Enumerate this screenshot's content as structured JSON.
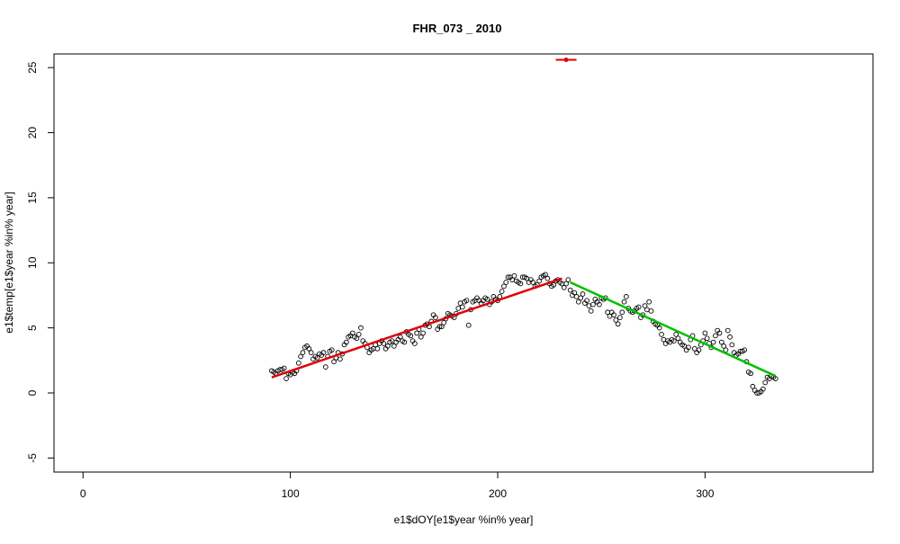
{
  "chart_data": {
    "type": "scatter",
    "title": "FHR_073 _ 2010",
    "x_label": "e1$dOY[e1$year %in% year]",
    "y_label": "e1$temp[e1$year %in% year]",
    "xlim": [
      -14,
      381
    ],
    "ylim": [
      -6.08,
      26.05
    ],
    "xticks": [
      0,
      100,
      200,
      300
    ],
    "yticks": [
      -5,
      0,
      5,
      10,
      15,
      20,
      25
    ],
    "points": {
      "color": "#000000",
      "x": [
        91,
        92,
        93,
        94,
        95,
        96,
        97,
        98,
        99,
        100,
        101,
        102,
        103,
        104,
        105,
        106,
        107,
        108,
        109,
        110,
        111,
        112,
        113,
        114,
        115,
        116,
        117,
        118,
        119,
        120,
        121,
        122,
        123,
        124,
        125,
        126,
        127,
        128,
        129,
        130,
        131,
        132,
        133,
        134,
        135,
        136,
        137,
        138,
        139,
        140,
        141,
        142,
        143,
        144,
        145,
        146,
        147,
        148,
        149,
        150,
        151,
        152,
        153,
        154,
        155,
        156,
        157,
        158,
        159,
        160,
        161,
        162,
        163,
        164,
        165,
        166,
        167,
        168,
        169,
        170,
        171,
        172,
        173,
        174,
        175,
        176,
        177,
        178,
        179,
        180,
        181,
        182,
        183,
        184,
        185,
        186,
        187,
        188,
        189,
        190,
        191,
        192,
        193,
        194,
        195,
        196,
        197,
        198,
        199,
        200,
        201,
        202,
        203,
        204,
        205,
        206,
        207,
        208,
        209,
        210,
        211,
        212,
        213,
        214,
        215,
        216,
        217,
        218,
        219,
        220,
        221,
        222,
        223,
        224,
        225,
        226,
        227,
        228,
        229,
        230,
        231,
        232,
        233,
        234,
        235,
        236,
        237,
        238,
        239,
        240,
        241,
        242,
        243,
        244,
        245,
        246,
        247,
        248,
        249,
        250,
        251,
        252,
        253,
        254,
        255,
        256,
        257,
        258,
        259,
        260,
        261,
        262,
        263,
        264,
        265,
        266,
        267,
        268,
        269,
        270,
        271,
        272,
        273,
        274,
        275,
        276,
        277,
        278,
        279,
        280,
        281,
        282,
        283,
        284,
        285,
        286,
        287,
        288,
        289,
        290,
        291,
        292,
        293,
        294,
        295,
        296,
        297,
        298,
        299,
        300,
        301,
        302,
        303,
        304,
        305,
        306,
        307,
        308,
        309,
        310,
        311,
        312,
        313,
        314,
        315,
        316,
        317,
        318,
        319,
        320,
        321,
        322,
        323,
        324,
        325,
        326,
        327,
        328,
        329,
        330,
        331,
        332,
        333,
        334
      ],
      "y": [
        1.7,
        1.6,
        1.5,
        1.7,
        1.8,
        1.8,
        1.9,
        1.1,
        1.5,
        1.4,
        1.6,
        1.5,
        1.7,
        2.3,
        2.8,
        3.1,
        3.5,
        3.6,
        3.4,
        3.1,
        2.6,
        2.8,
        2.7,
        3.0,
        2.9,
        3.1,
        2.0,
        2.8,
        3.2,
        3.3,
        2.4,
        2.7,
        3.1,
        2.6,
        3.0,
        3.7,
        3.9,
        4.3,
        4.4,
        4.6,
        4.3,
        4.2,
        4.5,
        5.0,
        4.0,
        3.8,
        3.5,
        3.1,
        3.3,
        3.4,
        3.7,
        3.4,
        3.8,
        4.0,
        3.8,
        3.4,
        3.6,
        3.9,
        4.0,
        3.6,
        3.9,
        4.1,
        4.3,
        4.0,
        3.9,
        4.7,
        4.5,
        4.4,
        4.0,
        3.8,
        4.6,
        4.9,
        4.3,
        4.6,
        5.2,
        5.3,
        5.1,
        5.5,
        6.0,
        5.8,
        4.9,
        5.1,
        5.1,
        5.4,
        5.7,
        6.1,
        6.0,
        5.9,
        5.8,
        6.1,
        6.5,
        6.9,
        6.6,
        7.0,
        7.1,
        5.2,
        6.4,
        7.0,
        7.1,
        7.3,
        7.1,
        6.9,
        7.1,
        7.3,
        7.2,
        6.8,
        7.0,
        7.4,
        7.2,
        7.1,
        7.4,
        7.8,
        8.2,
        8.5,
        8.9,
        8.9,
        8.7,
        9.0,
        8.6,
        8.5,
        8.4,
        8.9,
        8.9,
        8.8,
        8.5,
        8.7,
        8.5,
        8.2,
        8.3,
        8.6,
        8.9,
        9.0,
        9.1,
        8.8,
        8.4,
        8.2,
        8.3,
        8.6,
        8.7,
        8.5,
        8.4,
        8.1,
        8.4,
        8.7,
        7.9,
        7.5,
        7.7,
        7.4,
        7.0,
        7.3,
        7.6,
        6.9,
        7.1,
        6.7,
        6.3,
        6.8,
        7.2,
        7.0,
        6.8,
        7.3,
        7.2,
        7.3,
        6.2,
        5.9,
        6.2,
        6.0,
        5.6,
        5.3,
        5.8,
        6.2,
        7.0,
        7.4,
        6.5,
        6.3,
        6.2,
        6.3,
        6.5,
        6.6,
        5.8,
        6.0,
        6.7,
        6.4,
        7.0,
        6.3,
        5.5,
        5.3,
        5.2,
        5.0,
        4.5,
        4.1,
        3.8,
        4.0,
        3.9,
        4.1,
        4.0,
        4.5,
        4.2,
        3.9,
        3.7,
        3.6,
        3.3,
        3.5,
        4.1,
        4.4,
        3.4,
        3.1,
        3.3,
        3.7,
        4.0,
        4.6,
        4.2,
        3.8,
        3.5,
        3.9,
        4.4,
        4.8,
        4.6,
        3.9,
        3.6,
        3.3,
        4.8,
        4.3,
        3.7,
        3.1,
        2.9,
        3.0,
        3.2,
        3.2,
        3.3,
        2.4,
        1.6,
        1.5,
        0.5,
        0.2,
        0.0,
        0.0,
        0.1,
        0.3,
        0.8,
        1.2,
        1.1,
        1.3,
        1.2,
        1.1
      ]
    },
    "lines": [
      {
        "color": "#e00000",
        "x": [
          91,
          231
        ],
        "y": [
          1.2,
          8.8
        ]
      },
      {
        "color": "#00c000",
        "x": [
          235,
          334
        ],
        "y": [
          8.5,
          1.3
        ]
      }
    ],
    "marker": {
      "color": "#e00000",
      "x": 233,
      "y": 25.6,
      "x_error": [
        228,
        238
      ]
    }
  }
}
